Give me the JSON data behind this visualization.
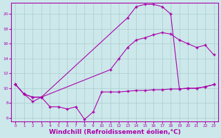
{
  "bg_color": "#cce8ea",
  "grid_color": "#aaccd0",
  "line_color": "#aa00aa",
  "marker_color": "#aa00aa",
  "xlabel": "Windchill (Refroidissement éolien,°C)",
  "xlabel_fontsize": 6.5,
  "yticks": [
    6,
    8,
    10,
    12,
    14,
    16,
    18,
    20
  ],
  "xticks": [
    0,
    1,
    2,
    3,
    4,
    5,
    6,
    7,
    8,
    9,
    10,
    11,
    12,
    13,
    14,
    15,
    16,
    17,
    18,
    19,
    20,
    21,
    22,
    23
  ],
  "xlim": [
    -0.5,
    23.5
  ],
  "ylim": [
    5.5,
    21.5
  ],
  "line1_x": [
    0,
    1,
    2,
    3,
    4,
    5,
    6,
    7,
    8,
    9,
    10,
    11,
    12,
    13,
    14,
    15,
    16,
    17,
    18,
    19,
    20,
    21,
    22,
    23
  ],
  "line1_y": [
    10.5,
    9.2,
    8.2,
    8.8,
    7.5,
    7.5,
    7.2,
    7.5,
    5.8,
    6.8,
    9.5,
    9.5,
    9.5,
    9.6,
    9.7,
    9.7,
    9.8,
    9.8,
    9.9,
    9.9,
    10.0,
    10.0,
    10.2,
    10.5
  ],
  "line2_x": [
    0,
    1,
    2,
    3,
    13,
    14,
    15,
    16,
    17,
    18,
    19,
    20,
    21,
    22,
    23
  ],
  "line2_y": [
    10.5,
    9.2,
    8.8,
    8.8,
    19.5,
    21.0,
    21.3,
    21.3,
    21.0,
    20.0,
    9.9,
    10.0,
    10.0,
    10.2,
    10.5
  ],
  "line3_x": [
    0,
    1,
    2,
    3,
    11,
    12,
    13,
    14,
    15,
    16,
    17,
    18,
    19,
    20,
    21,
    22,
    23
  ],
  "line3_y": [
    10.5,
    9.2,
    8.8,
    8.8,
    12.5,
    14.0,
    15.5,
    16.5,
    16.8,
    17.2,
    17.5,
    17.3,
    16.5,
    16.0,
    15.5,
    15.8,
    14.5
  ]
}
